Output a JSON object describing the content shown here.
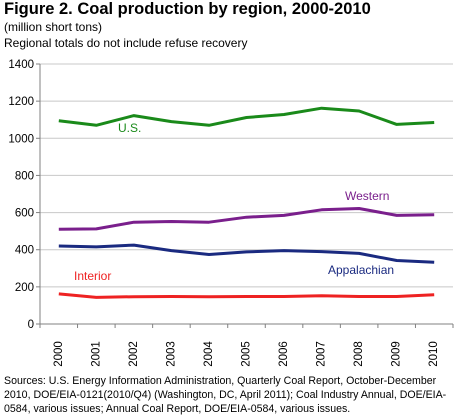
{
  "title": "Figure 2. Coal production by region, 2000-2010",
  "subtitle1": "(million short tons)",
  "subtitle2": "Regional totals do not include refuse recovery",
  "source": "Sources: U.S. Energy Information Administration, Quarterly Coal Report, October-December 2010, DOE/EIA-0121(2010/Q4) (Washington, DC, April 2011); Coal Industry Annual, DOE/EIA-0584, various issues; Annual Coal Report, DOE/EIA-0584, various issues.",
  "chart_data": {
    "type": "line",
    "title": "Figure 2. Coal production by region, 2000-2010",
    "ylabel": "(million short tons)",
    "xlabel": "",
    "x": [
      "2000",
      "2001",
      "2002",
      "2003",
      "2004",
      "2005",
      "2006",
      "2007",
      "2008",
      "2009",
      "2010"
    ],
    "ylim": [
      0,
      1400
    ],
    "yticks": [
      0,
      200,
      400,
      600,
      800,
      1000,
      1200,
      1400
    ],
    "grid": "horizontal",
    "legend": "inline labels",
    "series": [
      {
        "name": "U.S.",
        "color": "#1a8a1a",
        "values": [
          1094,
          1070,
          1122,
          1090,
          1070,
          1112,
          1128,
          1162,
          1147,
          1075,
          1085
        ]
      },
      {
        "name": "Western",
        "color": "#7a1f8c",
        "values": [
          510,
          512,
          548,
          552,
          548,
          575,
          585,
          615,
          622,
          585,
          588
        ]
      },
      {
        "name": "Appalachian",
        "color": "#1a2a80",
        "values": [
          420,
          415,
          425,
          395,
          374,
          388,
          395,
          390,
          380,
          342,
          332
        ]
      },
      {
        "name": "Interior",
        "color": "#ee2222",
        "values": [
          162,
          143,
          147,
          148,
          147,
          148,
          148,
          152,
          148,
          148,
          157
        ]
      }
    ]
  }
}
